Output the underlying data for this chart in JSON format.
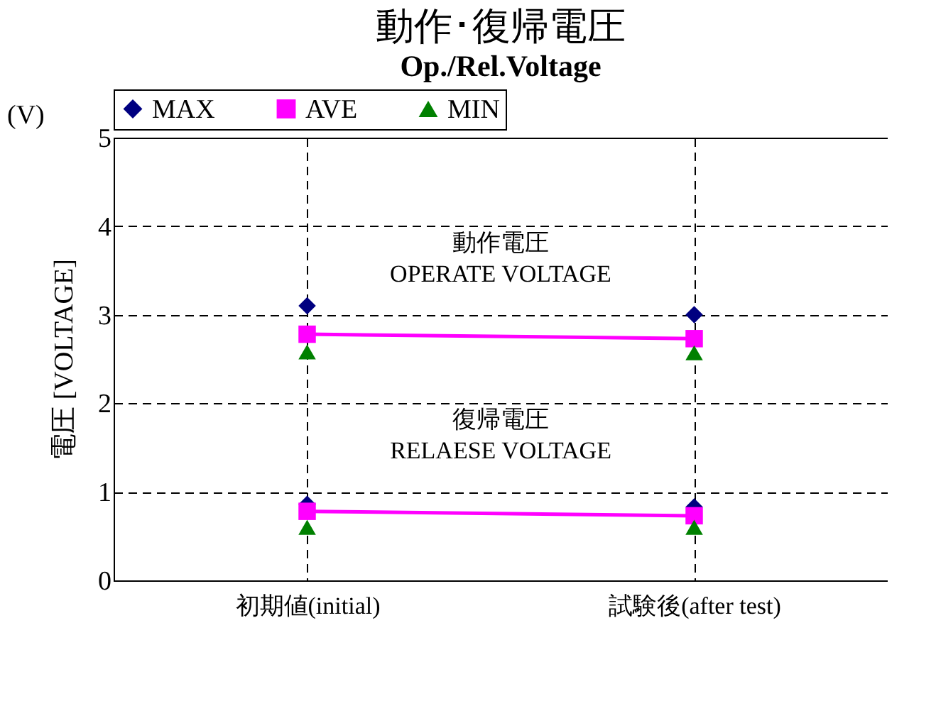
{
  "chart_data": {
    "type": "scatter",
    "title": "動作･復帰電圧",
    "subtitle": "Op./Rel.Voltage",
    "ylabel": "電圧 [VOLTAGE]",
    "categories": [
      "初期値(initial)",
      "試験後(after test)"
    ],
    "series": [
      {
        "name": "MAX",
        "marker": "diamond",
        "color": "#000080",
        "values": [
          3.1,
          3.0
        ]
      },
      {
        "name": "AVE",
        "type": "line",
        "marker": "square",
        "color": "#ff00ff",
        "values": [
          2.78,
          2.73
        ]
      },
      {
        "name": "MIN",
        "marker": "triangle",
        "color": "#008000",
        "values": [
          2.58,
          2.57
        ]
      },
      {
        "marker": "diamond",
        "color": "#000080",
        "values": [
          0.86,
          0.83
        ]
      },
      {
        "type": "line",
        "marker": "square",
        "color": "#ff00ff",
        "values": [
          0.78,
          0.73
        ]
      },
      {
        "marker": "triangle",
        "color": "#008000",
        "values": [
          0.6,
          0.6
        ]
      }
    ],
    "ylim": [
      0,
      5
    ],
    "yticks": [
      0,
      1,
      2,
      3,
      4,
      5
    ],
    "grid": true,
    "legend": "top",
    "annotations": [
      "(V)",
      "動作電圧\nOPERATE VOLTAGE",
      "復帰電圧\nRELAESE VOLTAGE"
    ]
  }
}
